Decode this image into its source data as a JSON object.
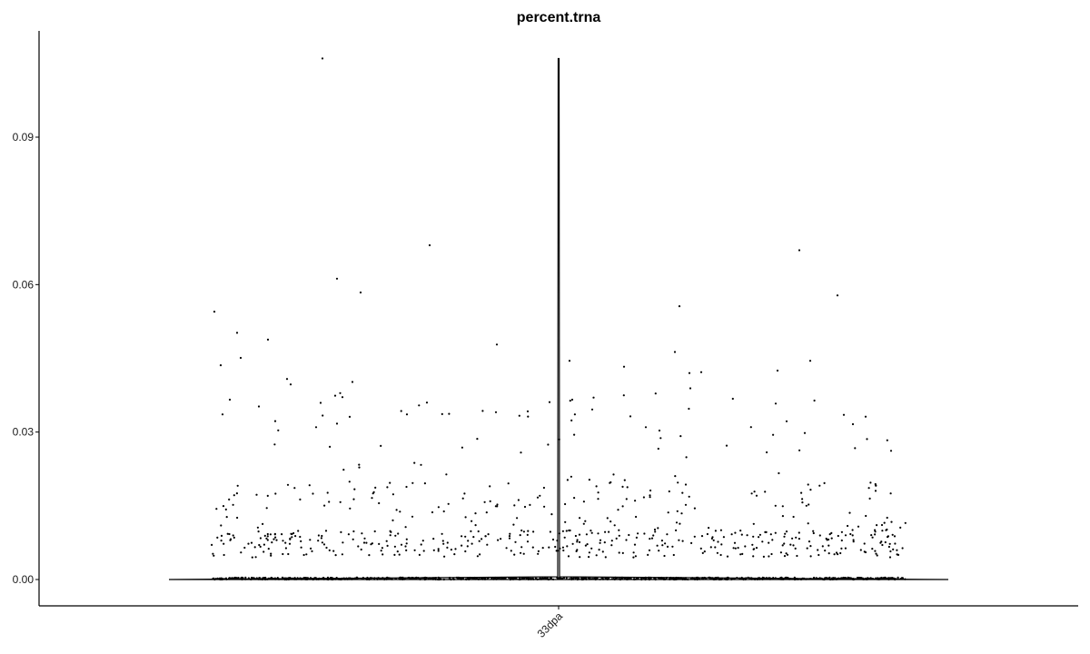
{
  "chart_data": {
    "type": "violin",
    "title": "percent.trna",
    "xlabel": "",
    "ylabel": "",
    "categories": [
      "33dpa"
    ],
    "ylim": [
      -0.003,
      0.106
    ],
    "yticks": [
      0.0,
      0.03,
      0.06,
      0.09
    ],
    "ytick_labels": [
      "0.00",
      "0.03",
      "0.06",
      "0.09"
    ],
    "xtick_labels": [
      "33dpa"
    ],
    "grid": false,
    "legend": "none",
    "violin": {
      "min": 0.0,
      "max": 0.106
    },
    "colors": {
      "points": "#000000",
      "violin_outline": "#000000",
      "axis": "#000000",
      "text": "#1a1a1a"
    }
  }
}
